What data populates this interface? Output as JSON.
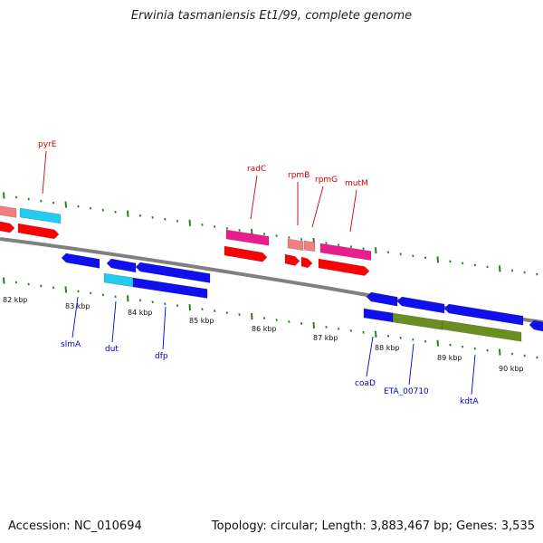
{
  "title": "Erwinia tasmaniensis Et1/99, complete genome",
  "footer": {
    "accession": "Accession: NC_010694",
    "topology": "Topology: circular; Length: 3,883,467 bp; Genes: 3,535"
  },
  "colors": {
    "backbone": "#7f7f7f",
    "tick": "#2e7d22",
    "label_top": "#cc0000",
    "label_bottom": "#0000cc",
    "red": "#ff0000",
    "pink": "#e91e8c",
    "light_red": "#f08080",
    "cyan": "#22ccee",
    "blue": "#1010ee",
    "olive": "#6b8e23"
  },
  "kbp_labels": [
    "82 kbp",
    "83 kbp",
    "84 kbp",
    "85 kbp",
    "86 kbp",
    "87 kbp",
    "88 kbp",
    "89 kbp",
    "90 kbp"
  ],
  "gene_labels_top": [
    "pyrE",
    "radC",
    "rpmB",
    "rpmG",
    "mutM"
  ],
  "gene_labels_bottom": [
    "slmA",
    "dut",
    "dfp",
    "coaD",
    "ETA_00710",
    "kdtA"
  ]
}
